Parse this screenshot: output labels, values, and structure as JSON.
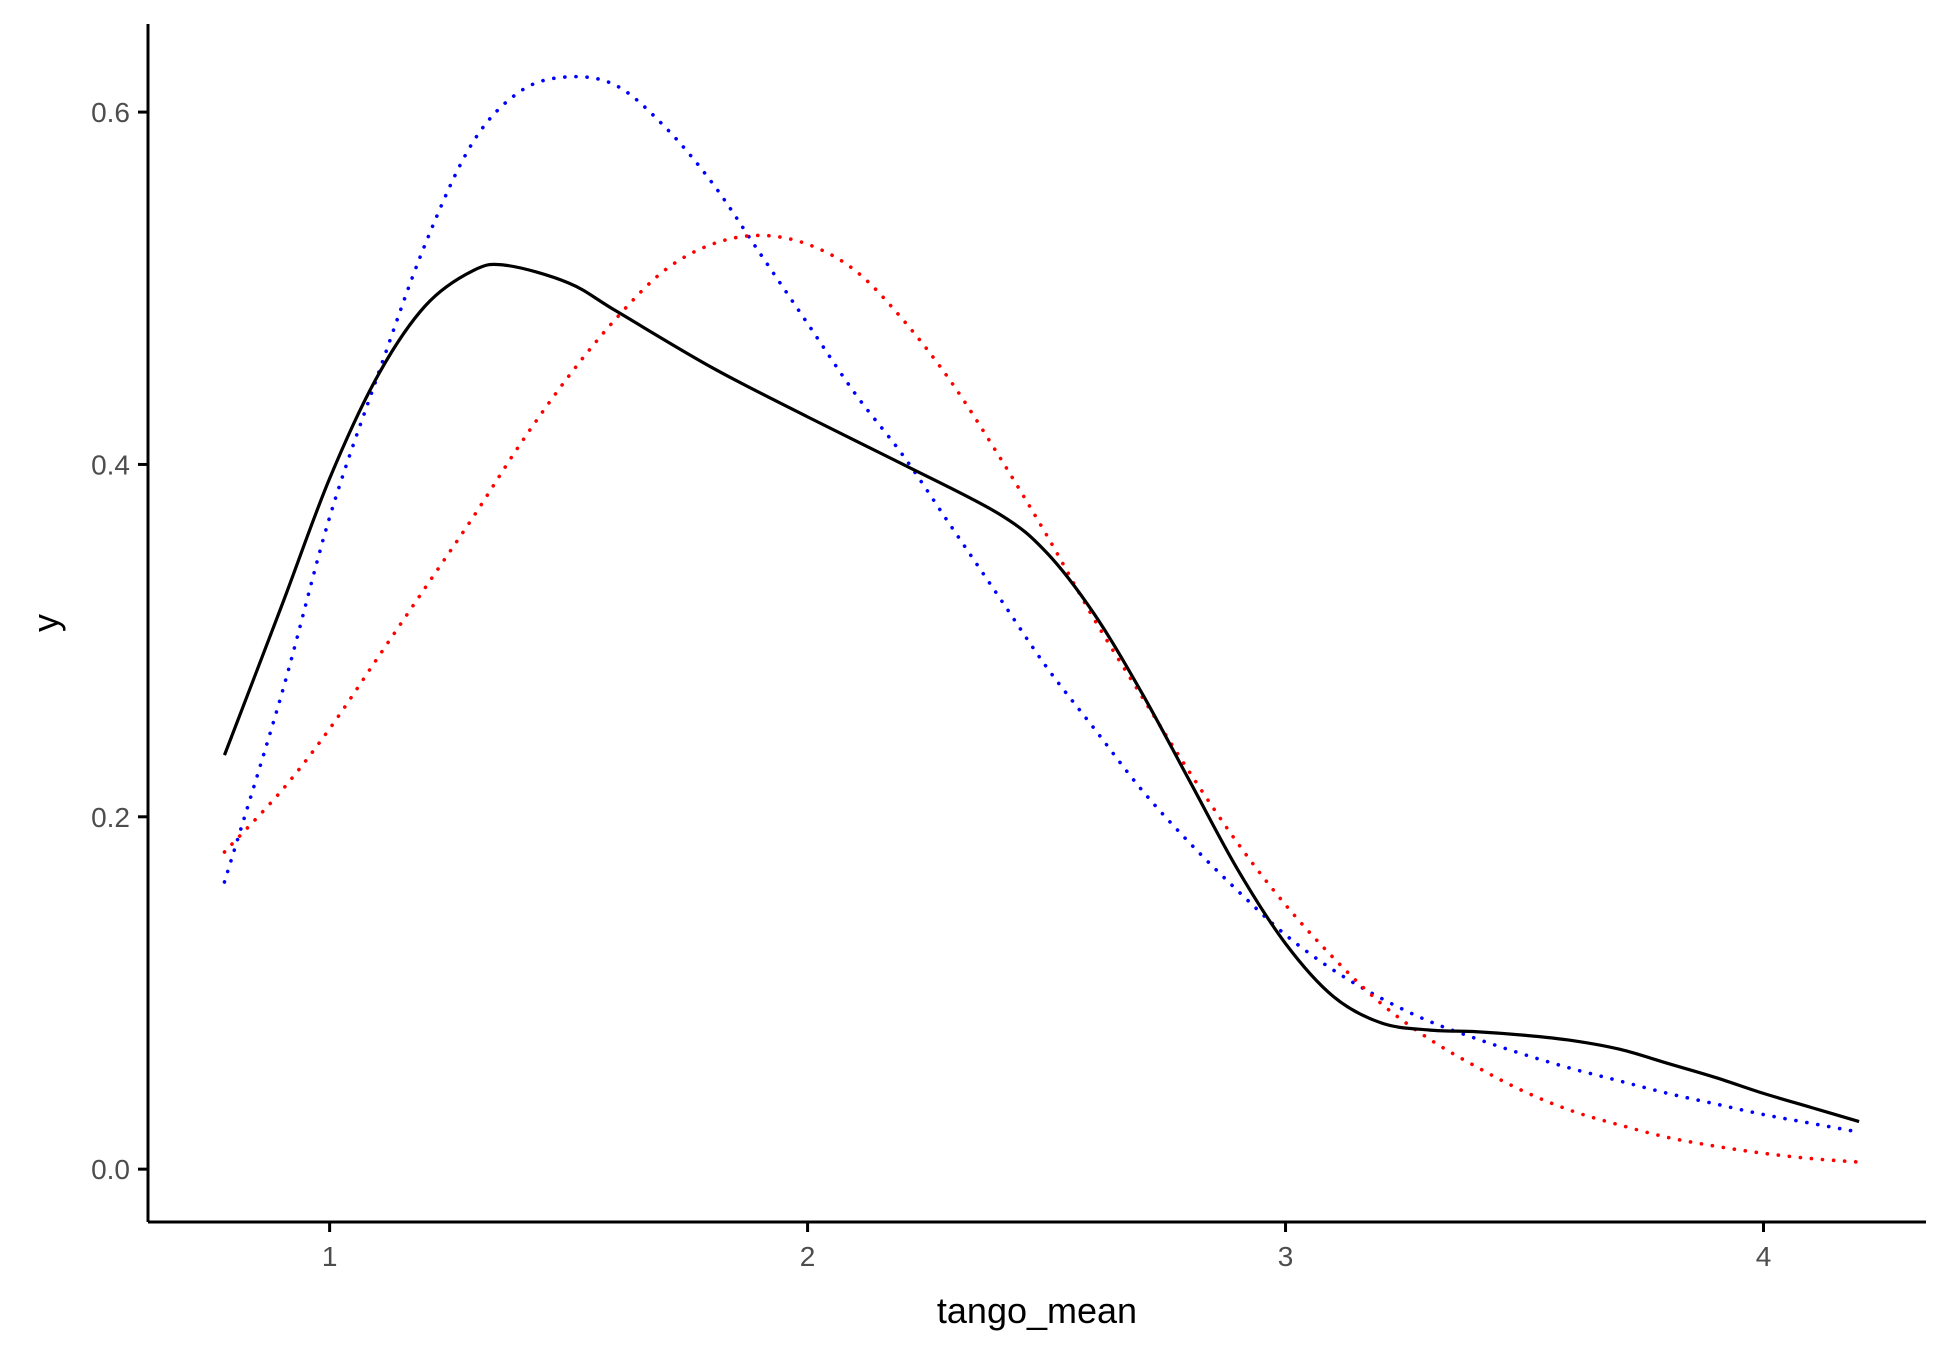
{
  "chart_data": {
    "type": "line",
    "title": "",
    "xlabel": "tango_mean",
    "ylabel": "y",
    "xlim": [
      0.62,
      4.34
    ],
    "ylim": [
      -0.03,
      0.65
    ],
    "x_ticks": [
      1,
      2,
      3,
      4
    ],
    "x_tick_labels": [
      "1",
      "2",
      "3",
      "4"
    ],
    "y_ticks": [
      0.0,
      0.2,
      0.4,
      0.6
    ],
    "y_tick_labels": [
      "0.0",
      "0.2",
      "0.4",
      "0.6"
    ],
    "grid": false,
    "legend": "none",
    "series": [
      {
        "color": "#000000",
        "style": "solid",
        "x": [
          0.78,
          0.9,
          1.0,
          1.1,
          1.2,
          1.3,
          1.37,
          1.5,
          1.6,
          1.8,
          2.0,
          2.2,
          2.4,
          2.5,
          2.6,
          2.7,
          2.8,
          2.9,
          3.0,
          3.1,
          3.2,
          3.3,
          3.4,
          3.5,
          3.6,
          3.7,
          3.8,
          3.9,
          4.0,
          4.1,
          4.2
        ],
        "y": [
          0.235,
          0.32,
          0.392,
          0.45,
          0.49,
          0.51,
          0.513,
          0.503,
          0.487,
          0.455,
          0.427,
          0.4,
          0.372,
          0.35,
          0.315,
          0.27,
          0.22,
          0.17,
          0.128,
          0.098,
          0.083,
          0.079,
          0.078,
          0.076,
          0.073,
          0.068,
          0.06,
          0.052,
          0.043,
          0.035,
          0.027
        ]
      },
      {
        "color": "#0000ff",
        "style": "dotted",
        "x": [
          0.78,
          0.9,
          1.0,
          1.1,
          1.2,
          1.3,
          1.4,
          1.5,
          1.6,
          1.7,
          1.8,
          1.9,
          2.0,
          2.1,
          2.2,
          2.3,
          2.4,
          2.5,
          2.6,
          2.7,
          2.8,
          2.9,
          3.0,
          3.1,
          3.2,
          3.3,
          3.4,
          3.5,
          3.6,
          3.7,
          3.8,
          3.9,
          4.0,
          4.1,
          4.2
        ],
        "y": [
          0.163,
          0.27,
          0.37,
          0.45,
          0.525,
          0.583,
          0.612,
          0.62,
          0.615,
          0.592,
          0.56,
          0.52,
          0.48,
          0.44,
          0.405,
          0.365,
          0.325,
          0.285,
          0.25,
          0.215,
          0.185,
          0.158,
          0.133,
          0.113,
          0.097,
          0.084,
          0.074,
          0.065,
          0.057,
          0.05,
          0.043,
          0.037,
          0.031,
          0.026,
          0.021
        ]
      },
      {
        "color": "#ff0000",
        "style": "dotted",
        "x": [
          0.78,
          0.9,
          1.0,
          1.1,
          1.2,
          1.3,
          1.4,
          1.5,
          1.6,
          1.7,
          1.8,
          1.9,
          2.0,
          2.1,
          2.2,
          2.3,
          2.4,
          2.5,
          2.6,
          2.7,
          2.8,
          2.9,
          3.0,
          3.1,
          3.2,
          3.3,
          3.4,
          3.5,
          3.6,
          3.7,
          3.8,
          3.9,
          4.0,
          4.1,
          4.2
        ],
        "y": [
          0.18,
          0.215,
          0.25,
          0.29,
          0.33,
          0.37,
          0.412,
          0.45,
          0.483,
          0.51,
          0.525,
          0.53,
          0.525,
          0.51,
          0.482,
          0.447,
          0.405,
          0.36,
          0.312,
          0.268,
          0.225,
          0.185,
          0.15,
          0.12,
          0.094,
          0.074,
          0.058,
          0.044,
          0.033,
          0.025,
          0.018,
          0.013,
          0.009,
          0.006,
          0.004
        ]
      }
    ]
  }
}
